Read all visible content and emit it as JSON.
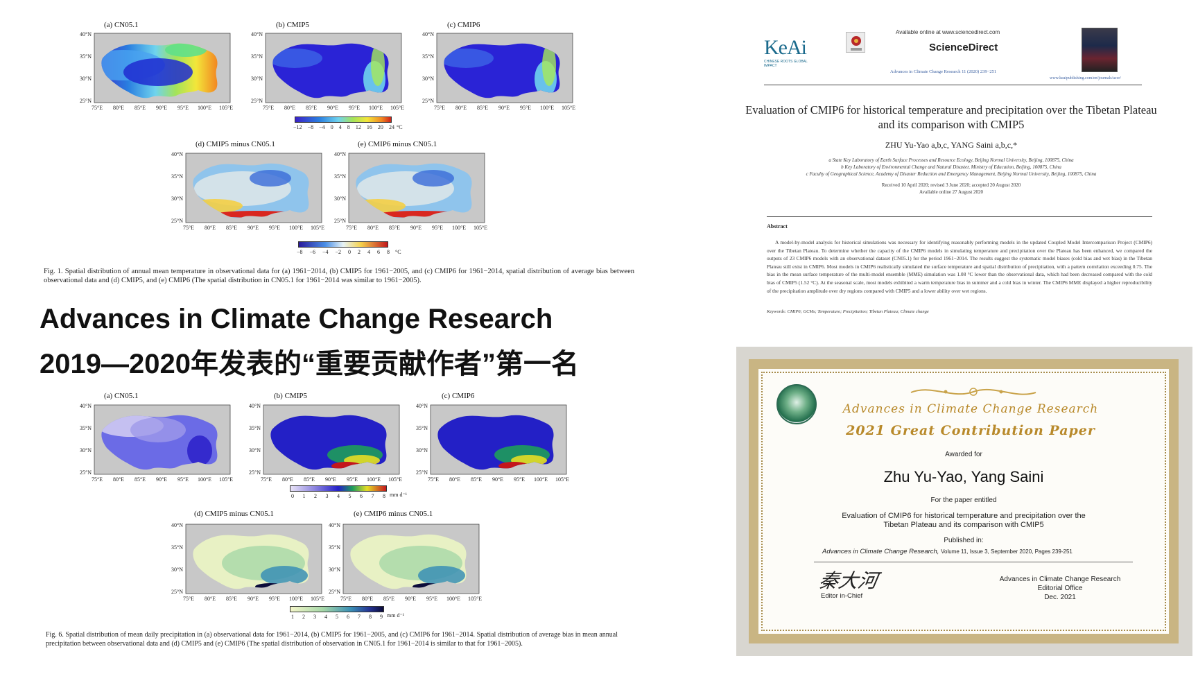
{
  "headline": {
    "line1": "Advances in Climate Change Research",
    "line2": "2019—2020年发表的“重要贡献作者”第一名"
  },
  "fig1": {
    "panels": {
      "a": "(a) CN05.1",
      "b": "(b) CMIP5",
      "c": "(c) CMIP6",
      "d": "(d) CMIP5 minus CN05.1",
      "e": "(e) CMIP6 minus CN05.1"
    },
    "lat_ticks": [
      "40°N",
      "35°N",
      "30°N",
      "25°N"
    ],
    "lon_ticks": [
      "75°E",
      "80°E",
      "85°E",
      "90°E",
      "95°E",
      "100°E",
      "105°E"
    ],
    "colorbar_top_ticks": [
      "−12",
      "−8",
      "−4",
      "0",
      "4",
      "8",
      "12",
      "16",
      "20",
      "24"
    ],
    "colorbar_top_unit": "°C",
    "colorbar_bottom_ticks": [
      "−8",
      "−6",
      "−4",
      "−2",
      "0",
      "2",
      "4",
      "6",
      "8"
    ],
    "colorbar_bottom_unit": "°C",
    "caption": "Fig. 1. Spatial distribution of annual mean temperature in observational data for (a) 1961−2014, (b) CMIP5 for 1961−2005, and (c) CMIP6 for 1961−2014, spatial distribution of average bias between observational data and (d) CMIP5, and (e) CMIP6 (The spatial distribution in CN05.1 for 1961−2014 was similar to 1961−2005)."
  },
  "fig6": {
    "panels": {
      "a": "(a) CN05.1",
      "b": "(b) CMIP5",
      "c": "(c) CMIP6",
      "d": "(d) CMIP5 minus CN05.1",
      "e": "(e) CMIP6 minus CN05.1"
    },
    "colorbar_top_ticks": [
      "0",
      "1",
      "2",
      "3",
      "4",
      "5",
      "6",
      "7",
      "8"
    ],
    "colorbar_top_unit": "mm d⁻¹",
    "colorbar_bottom_ticks": [
      "1",
      "2",
      "3",
      "4",
      "5",
      "6",
      "7",
      "8",
      "9"
    ],
    "colorbar_bottom_unit": "mm d⁻¹",
    "caption": "Fig. 6. Spatial distribution of mean daily precipitation in (a) observational data for 1961−2014, (b) CMIP5 for 1961−2005, and (c) CMIP6 for 1961−2014. Spatial distribution of average bias in mean annual precipitation between observational data and (d) CMIP5 and (e) CMIP6 (The spatial distribution of observation in CN05.1 for 1961−2014 is similar to that for 1961−2005)."
  },
  "paper": {
    "publisher_logo": "KeAi",
    "publisher_tagline": "CHINESE ROOTS GLOBAL IMPACT",
    "available_online": "Available online at www.sciencedirect.com",
    "sciencedirect": "ScienceDirect",
    "journal_ref": "Advances in Climate Change Research 11 (2020) 239−251",
    "journal_url": "www.keaipublishing.com/en/journals/accr/",
    "title": "Evaluation of CMIP6 for historical temperature and precipitation over the Tibetan Plateau and its comparison with CMIP5",
    "authors": "ZHU Yu-Yao a,b,c, YANG Saini a,b,c,*",
    "affil_a": "a State Key Laboratory of Earth Surface Processes and Resource Ecology, Beijing Normal University, Beijing, 100875, China",
    "affil_b": "b Key Laboratory of Environmental Change and Natural Disaster, Ministry of Education, Beijing, 100875, China",
    "affil_c": "c Faculty of Geographical Science, Academy of Disaster Reduction and Emergency Management, Beijing Normal University, Beijing, 100875, China",
    "received": "Received 10 April 2020; revised 3 June 2020; accepted 20 August 2020",
    "available_date": "Available online 27 August 2020",
    "abstract_heading": "Abstract",
    "abstract": "A model-by-model analysis for historical simulations was necessary for identifying reasonably performing models in the updated Coupled Model Intercomparison Project (CMIP6) over the Tibetan Plateau. To determine whether the capacity of the CMIP6 models in simulating temperature and precipitation over the Plateau has been enhanced, we compared the outputs of 23 CMIP6 models with an observational dataset (CN05.1) for the period 1961−2014. The results suggest the systematic model biases (cold bias and wet bias) in the Tibetan Plateau still exist in CMIP6. Most models in CMIP6 realistically simulated the surface temperature and spatial distribution of precipitation, with a pattern correlation exceeding 0.75. The bias in the mean surface temperature of the multi-model ensemble (MME) simulation was 1.08 °C lower than the observational data, which had been decreased compared with the cold bias of CMIP5 (1.52 °C). At the seasonal scale, most models exhibited a warm temperature bias in summer and a cold bias in winter. The CMIP6 MME displayed a higher reproducibility of the precipitation amplitude over dry regions compared with CMIP5 and a lower ability over wet regions.",
    "keywords": "Keywords: CMIP6; GCMs; Temperature; Precipitation; Tibetan Plateau; Climate change"
  },
  "certificate": {
    "journal": "Advances in Climate Change Research",
    "award": "2021 Great Contribution Paper",
    "awarded_for": "Awarded for",
    "recipients": "Zhu Yu-Yao, Yang Saini",
    "for_paper": "For the paper entitled",
    "paper_title_l1": "Evaluation of CMIP6 for historical temperature and precipitation over the",
    "paper_title_l2": "Tibetan Plateau and its comparison with CMIP5",
    "published_in": "Published in:",
    "journal_italic": "Advances in Climate Change Research,",
    "volume": "Volume 11, Issue 3, September 2020, Pages 239-251",
    "signature": "秦大河",
    "editor_title": "Editor in-Chief",
    "office_l1": "Advances in Climate Change Research",
    "office_l2": "Editorial Office",
    "office_date": "Dec. 2021"
  },
  "colors": {
    "headline": "#111111",
    "cert_gold": "#c9a34a",
    "cert_title_gold": "#b8892a",
    "map_grey": "#c8c8c8"
  }
}
